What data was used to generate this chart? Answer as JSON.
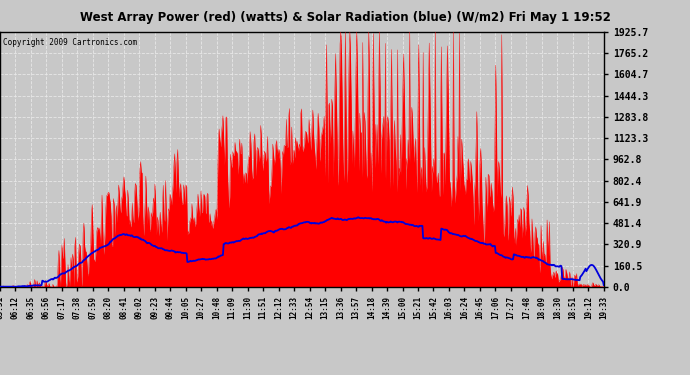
{
  "title": "West Array Power (red) (watts) & Solar Radiation (blue) (W/m2) Fri May 1 19:52",
  "copyright": "Copyright 2009 Cartronics.com",
  "yticks": [
    0.0,
    160.5,
    320.9,
    481.4,
    641.9,
    802.4,
    962.8,
    1123.3,
    1283.8,
    1444.3,
    1604.7,
    1765.2,
    1925.7
  ],
  "ymax": 1925.7,
  "xtick_labels": [
    "05:51",
    "06:12",
    "06:35",
    "06:56",
    "07:17",
    "07:38",
    "07:59",
    "08:20",
    "08:41",
    "09:02",
    "09:23",
    "09:44",
    "10:05",
    "10:27",
    "10:48",
    "11:09",
    "11:30",
    "11:51",
    "12:12",
    "12:33",
    "12:54",
    "13:15",
    "13:36",
    "13:57",
    "14:18",
    "14:39",
    "15:00",
    "15:21",
    "15:42",
    "16:03",
    "16:24",
    "16:45",
    "17:06",
    "17:27",
    "17:48",
    "18:09",
    "18:30",
    "18:51",
    "19:12",
    "19:33"
  ],
  "outer_bg": "#c8c8c8",
  "plot_bg": "#c8c8c8",
  "red_color": "#ff0000",
  "blue_color": "#0000dd",
  "grid_color": "#e8e8e8",
  "title_bg": "#ffffff",
  "n_points": 800
}
